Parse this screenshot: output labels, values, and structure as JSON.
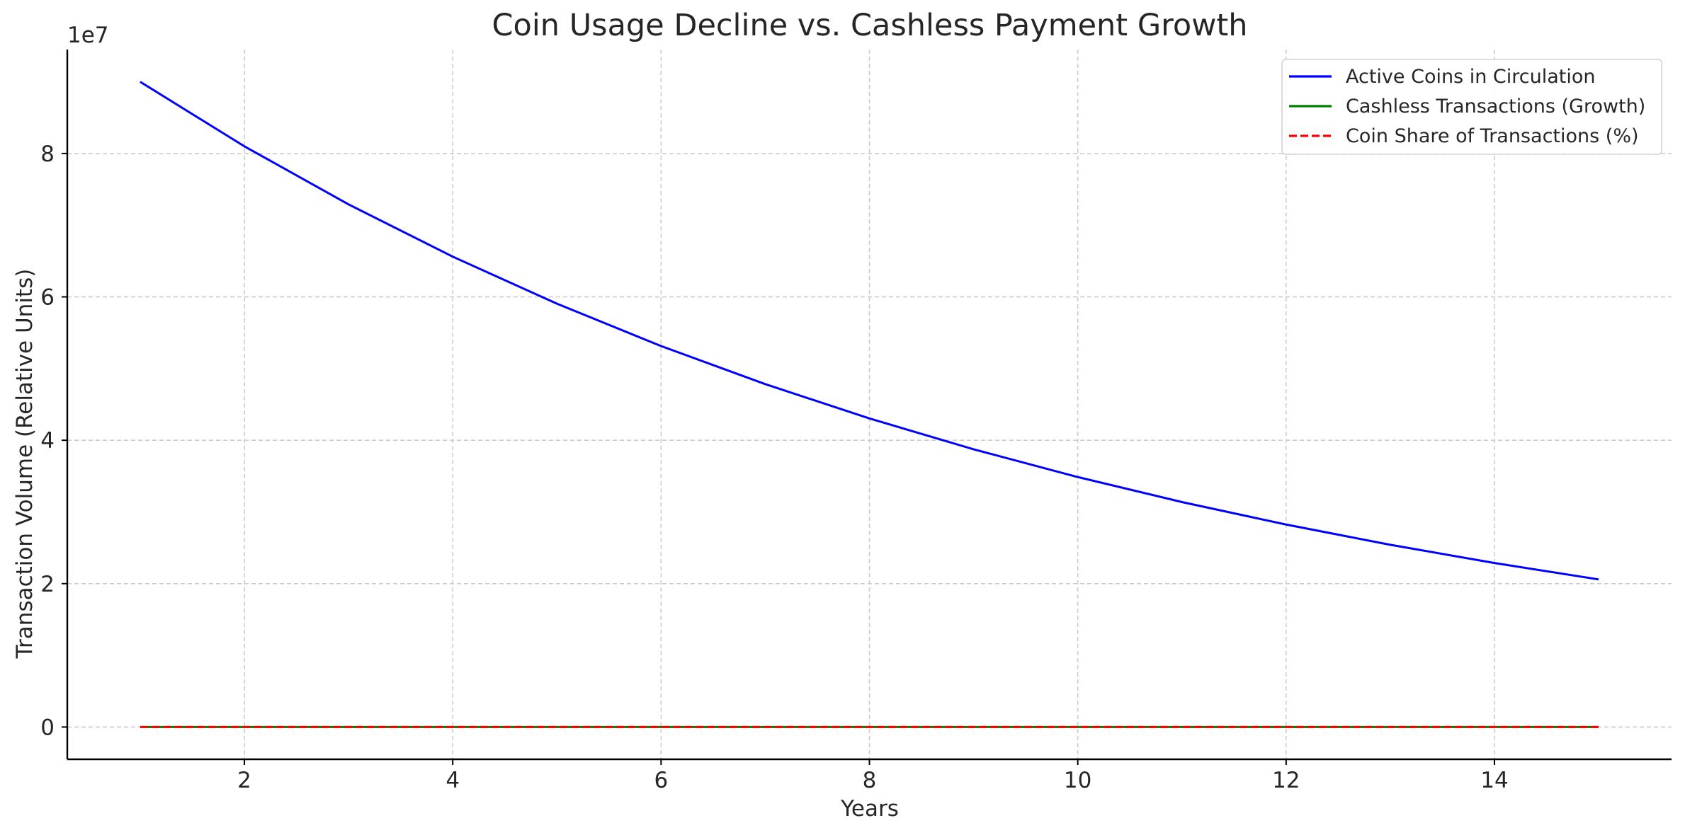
{
  "chart_data": {
    "type": "line",
    "title": "Coin Usage Decline vs. Cashless Payment Growth",
    "xlabel": "Years",
    "ylabel": "Transaction Volume (Relative Units)",
    "y_offset_label": "1e7",
    "x": [
      1,
      2,
      3,
      4,
      5,
      6,
      7,
      8,
      9,
      10,
      11,
      12,
      13,
      14,
      15
    ],
    "xlim": [
      0.3,
      15.7
    ],
    "ylim": [
      -4500000,
      94500000
    ],
    "x_ticks": [
      2,
      4,
      6,
      8,
      10,
      12,
      14
    ],
    "x_tick_labels": [
      "2",
      "4",
      "6",
      "8",
      "10",
      "12",
      "14"
    ],
    "y_ticks": [
      0,
      20000000,
      40000000,
      60000000,
      80000000
    ],
    "y_tick_labels": [
      "0",
      "2",
      "4",
      "6",
      "8"
    ],
    "grid": true,
    "legend_position": "top-right",
    "series": [
      {
        "name": "Active Coins in Circulation",
        "color": "#0000ff",
        "dash": "solid",
        "values": [
          90000000,
          81000000,
          72900000,
          65610000,
          59049000,
          53144100,
          47829690,
          43046721,
          38742049,
          34867844,
          31381060,
          28242954,
          25418658,
          22876792,
          20589113
        ]
      },
      {
        "name": "Cashless Transactions (Growth)",
        "color": "#008000",
        "dash": "solid",
        "values": [
          10,
          12,
          14,
          17,
          21,
          25,
          30,
          36,
          43,
          52,
          62,
          74,
          89,
          107,
          128
        ]
      },
      {
        "name": "Coin Share of Transactions (%)",
        "color": "#ff0000",
        "dash": "dashed",
        "values": [
          90,
          87,
          84,
          80,
          76,
          72,
          68,
          63,
          58,
          54,
          49,
          45,
          40,
          36,
          32
        ]
      }
    ]
  }
}
